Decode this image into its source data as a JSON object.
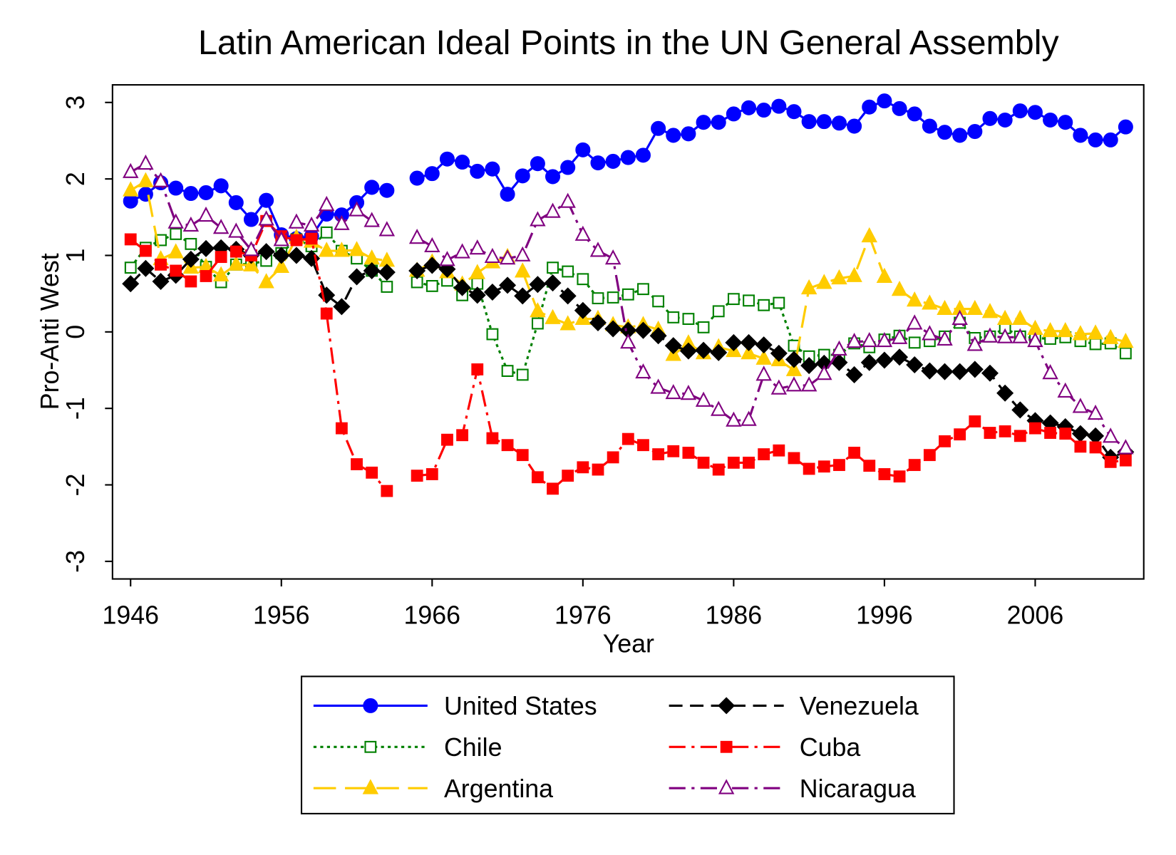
{
  "chart_data": {
    "type": "line",
    "title": "Latin American Ideal Points in the UN General Assembly",
    "x_label": "Year",
    "y_label": "Pro-Anti West",
    "x": [
      1946,
      1947,
      1948,
      1949,
      1950,
      1951,
      1952,
      1953,
      1954,
      1955,
      1956,
      1957,
      1958,
      1959,
      1960,
      1961,
      1962,
      1963,
      1964,
      1965,
      1966,
      1967,
      1968,
      1969,
      1970,
      1971,
      1972,
      1973,
      1974,
      1975,
      1976,
      1977,
      1978,
      1979,
      1980,
      1981,
      1982,
      1983,
      1984,
      1985,
      1986,
      1987,
      1988,
      1989,
      1990,
      1991,
      1992,
      1993,
      1994,
      1995,
      1996,
      1997,
      1998,
      1999,
      2000,
      2001,
      2002,
      2003,
      2004,
      2005,
      2006,
      2007,
      2008,
      2009,
      2010,
      2011,
      2012
    ],
    "xlim": [
      1944.8,
      2013.2
    ],
    "xticks": [
      1946,
      1956,
      1966,
      1976,
      1986,
      1996,
      2006
    ],
    "ylim": [
      -3.23,
      3.23
    ],
    "yticks": [
      -3,
      -2,
      -1,
      0,
      1,
      2,
      3
    ],
    "grid": false,
    "series": [
      {
        "name": "United States",
        "color": "#0000ff",
        "dash": "solid",
        "marker": "circle",
        "filled": true,
        "values": [
          1.71,
          1.8,
          1.95,
          1.88,
          1.81,
          1.82,
          1.91,
          1.69,
          1.47,
          1.72,
          1.27,
          1.22,
          1.25,
          1.54,
          1.53,
          1.69,
          1.89,
          1.85,
          null,
          2.01,
          2.07,
          2.26,
          2.22,
          2.1,
          2.13,
          1.8,
          2.04,
          2.2,
          2.03,
          2.15,
          2.38,
          2.21,
          2.23,
          2.28,
          2.31,
          2.66,
          2.57,
          2.59,
          2.74,
          2.74,
          2.85,
          2.93,
          2.9,
          2.95,
          2.88,
          2.75,
          2.75,
          2.73,
          2.69,
          2.94,
          3.02,
          2.92,
          2.85,
          2.69,
          2.61,
          2.57,
          2.62,
          2.79,
          2.77,
          2.89,
          2.87,
          2.77,
          2.74,
          2.57,
          2.51,
          2.51,
          2.68
        ]
      },
      {
        "name": "Chile",
        "color": "#008000",
        "dash": "dot",
        "marker": "square",
        "filled": false,
        "values": [
          0.84,
          1.1,
          1.2,
          1.28,
          1.15,
          0.85,
          0.65,
          0.88,
          0.89,
          0.93,
          1.03,
          1.21,
          1.12,
          1.3,
          1.06,
          0.96,
          0.8,
          0.59,
          null,
          0.65,
          0.6,
          0.67,
          0.48,
          0.63,
          -0.03,
          -0.51,
          -0.56,
          0.11,
          0.84,
          0.79,
          0.69,
          0.44,
          0.45,
          0.49,
          0.56,
          0.4,
          0.19,
          0.17,
          0.06,
          0.27,
          0.43,
          0.41,
          0.35,
          0.38,
          -0.18,
          -0.32,
          -0.3,
          -0.3,
          -0.15,
          -0.2,
          -0.1,
          -0.05,
          -0.14,
          -0.12,
          -0.06,
          0.12,
          -0.08,
          -0.06,
          0.05,
          -0.06,
          -0.08,
          -0.09,
          -0.07,
          -0.12,
          -0.16,
          -0.15,
          -0.28
        ]
      },
      {
        "name": "Argentina",
        "color": "#ffcc00",
        "dash": "longdash",
        "marker": "triangle",
        "filled": true,
        "values": [
          1.85,
          1.97,
          0.95,
          1.04,
          0.84,
          0.85,
          0.74,
          0.88,
          0.87,
          0.65,
          0.85,
          1.23,
          1.18,
          1.06,
          1.06,
          1.07,
          0.96,
          0.93,
          null,
          0.8,
          0.91,
          0.78,
          0.62,
          0.77,
          0.91,
          0.98,
          0.79,
          0.27,
          0.18,
          0.1,
          0.17,
          0.17,
          0.09,
          0.06,
          0.09,
          0.03,
          -0.3,
          -0.15,
          -0.28,
          -0.2,
          -0.25,
          -0.28,
          -0.35,
          -0.37,
          -0.5,
          0.57,
          0.64,
          0.7,
          0.73,
          1.25,
          0.72,
          0.55,
          0.41,
          0.37,
          0.3,
          0.3,
          0.3,
          0.26,
          0.17,
          0.17,
          0.04,
          0.01,
          0.01,
          -0.03,
          -0.02,
          -0.08,
          -0.13
        ]
      },
      {
        "name": "Venezuela",
        "color": "#000000",
        "dash": "dash",
        "marker": "diamond",
        "filled": true,
        "values": [
          0.63,
          0.83,
          0.66,
          0.74,
          0.95,
          1.09,
          1.1,
          1.08,
          1.0,
          1.05,
          1.0,
          1.0,
          0.96,
          0.48,
          0.33,
          0.72,
          0.8,
          0.78,
          null,
          0.8,
          0.87,
          0.82,
          0.58,
          0.48,
          0.52,
          0.61,
          0.47,
          0.62,
          0.64,
          0.47,
          0.28,
          0.12,
          0.04,
          0.02,
          0.02,
          -0.05,
          -0.18,
          -0.25,
          -0.24,
          -0.27,
          -0.14,
          -0.14,
          -0.17,
          -0.28,
          -0.36,
          -0.44,
          -0.41,
          -0.4,
          -0.56,
          -0.4,
          -0.37,
          -0.33,
          -0.43,
          -0.51,
          -0.52,
          -0.52,
          -0.49,
          -0.54,
          -0.8,
          -1.02,
          -1.16,
          -1.19,
          -1.24,
          -1.33,
          -1.36,
          -1.64,
          -1.57
        ]
      },
      {
        "name": "Cuba",
        "color": "#ff0000",
        "dash": "dashdot",
        "marker": "square",
        "filled": true,
        "values": [
          1.21,
          1.06,
          0.88,
          0.8,
          0.66,
          0.73,
          0.98,
          1.05,
          1.0,
          1.45,
          1.25,
          1.2,
          1.22,
          0.24,
          -1.26,
          -1.73,
          -1.84,
          -2.08,
          null,
          -1.88,
          -1.86,
          -1.41,
          -1.35,
          -0.49,
          -1.39,
          -1.48,
          -1.61,
          -1.9,
          -2.05,
          -1.88,
          -1.77,
          -1.8,
          -1.64,
          -1.4,
          -1.48,
          -1.6,
          -1.56,
          -1.58,
          -1.71,
          -1.8,
          -1.71,
          -1.71,
          -1.6,
          -1.55,
          -1.65,
          -1.79,
          -1.76,
          -1.74,
          -1.58,
          -1.75,
          -1.86,
          -1.89,
          -1.74,
          -1.61,
          -1.43,
          -1.34,
          -1.17,
          -1.32,
          -1.3,
          -1.36,
          -1.26,
          -1.32,
          -1.33,
          -1.5,
          -1.51,
          -1.7,
          -1.68
        ]
      },
      {
        "name": "Nicaragua",
        "color": "#800080",
        "dash": "dashdot",
        "marker": "triangle",
        "filled": false,
        "values": [
          2.09,
          2.2,
          1.97,
          1.43,
          1.39,
          1.52,
          1.36,
          1.31,
          1.07,
          1.47,
          1.2,
          1.43,
          1.39,
          1.66,
          1.41,
          1.59,
          1.45,
          1.33,
          null,
          1.23,
          1.12,
          0.94,
          1.04,
          1.09,
          0.98,
          0.96,
          1.0,
          1.46,
          1.57,
          1.7,
          1.27,
          1.06,
          0.96,
          -0.14,
          -0.53,
          -0.73,
          -0.8,
          -0.81,
          -0.9,
          -1.02,
          -1.16,
          -1.15,
          -0.56,
          -0.74,
          -0.7,
          -0.7,
          -0.55,
          -0.23,
          -0.13,
          -0.12,
          -0.12,
          -0.08,
          0.11,
          -0.03,
          -0.1,
          0.17,
          -0.17,
          -0.06,
          -0.07,
          -0.07,
          -0.12,
          -0.54,
          -0.78,
          -0.98,
          -1.07,
          -1.37,
          -1.52
        ]
      }
    ]
  }
}
